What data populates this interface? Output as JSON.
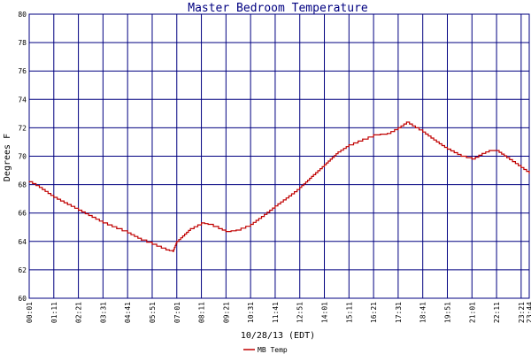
{
  "chart_data": {
    "type": "line",
    "title": "Master Bedroom Temperature",
    "xlabel": "10/28/13 (EDT)",
    "ylabel": "Degrees F",
    "ylim": [
      60,
      80
    ],
    "yticks": [
      60,
      62,
      64,
      66,
      68,
      70,
      72,
      74,
      76,
      78,
      80
    ],
    "xlim": [
      "00:01",
      "23:44"
    ],
    "xticks": [
      "00:01",
      "01:11",
      "02:21",
      "03:31",
      "04:41",
      "05:51",
      "07:01",
      "08:11",
      "09:21",
      "10:31",
      "11:41",
      "12:51",
      "14:01",
      "15:11",
      "16:21",
      "17:31",
      "18:41",
      "19:51",
      "21:01",
      "22:11",
      "23:21",
      "23:44"
    ],
    "grid": true,
    "legend": "bottom-center",
    "colors": {
      "grid": "#000080",
      "line": "#c00000",
      "title": "#000080"
    },
    "series": [
      {
        "name": "MB Temp",
        "points": [
          [
            "00:01",
            68.2
          ],
          [
            "00:30",
            67.8
          ],
          [
            "01:11",
            67.1
          ],
          [
            "01:50",
            66.6
          ],
          [
            "02:21",
            66.2
          ],
          [
            "03:00",
            65.7
          ],
          [
            "03:31",
            65.3
          ],
          [
            "04:10",
            64.9
          ],
          [
            "04:41",
            64.6
          ],
          [
            "05:20",
            64.1
          ],
          [
            "05:51",
            63.8
          ],
          [
            "06:30",
            63.4
          ],
          [
            "06:50",
            63.3
          ],
          [
            "07:01",
            64.0
          ],
          [
            "07:40",
            64.9
          ],
          [
            "08:11",
            65.3
          ],
          [
            "08:30",
            65.2
          ],
          [
            "09:00",
            64.9
          ],
          [
            "09:21",
            64.7
          ],
          [
            "09:50",
            64.8
          ],
          [
            "10:31",
            65.2
          ],
          [
            "11:10",
            65.9
          ],
          [
            "11:41",
            66.5
          ],
          [
            "12:20",
            67.2
          ],
          [
            "12:51",
            67.8
          ],
          [
            "13:30",
            68.7
          ],
          [
            "14:01",
            69.4
          ],
          [
            "14:40",
            70.3
          ],
          [
            "15:11",
            70.8
          ],
          [
            "15:50",
            71.2
          ],
          [
            "16:21",
            71.5
          ],
          [
            "17:00",
            71.6
          ],
          [
            "17:31",
            72.0
          ],
          [
            "17:55",
            72.4
          ],
          [
            "18:20",
            72.0
          ],
          [
            "18:41",
            71.7
          ],
          [
            "19:20",
            71.0
          ],
          [
            "19:51",
            70.5
          ],
          [
            "20:30",
            70.0
          ],
          [
            "21:01",
            69.8
          ],
          [
            "21:30",
            70.2
          ],
          [
            "21:50",
            70.4
          ],
          [
            "22:11",
            70.4
          ],
          [
            "22:40",
            69.9
          ],
          [
            "23:21",
            69.2
          ],
          [
            "23:44",
            68.8
          ]
        ]
      }
    ]
  }
}
